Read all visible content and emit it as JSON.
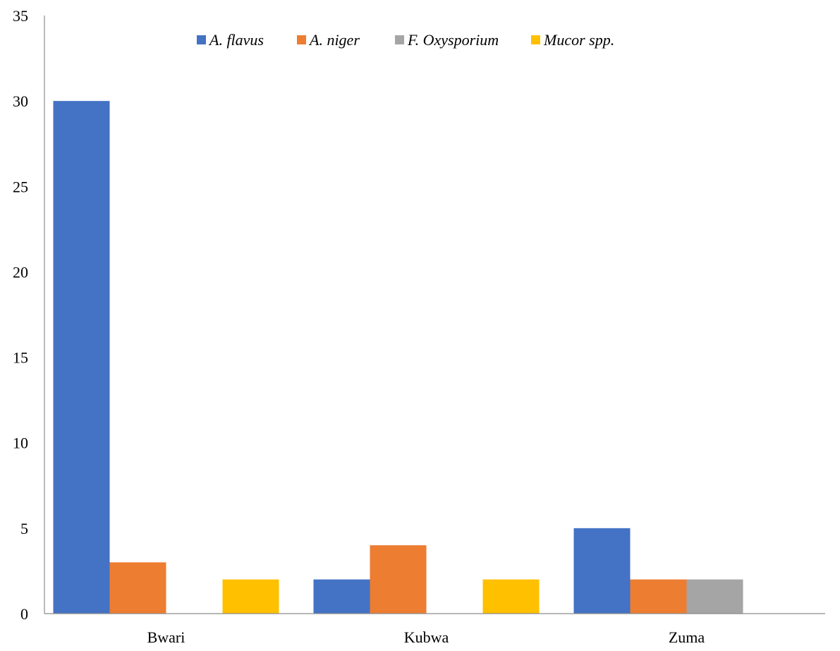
{
  "chart_data": {
    "type": "bar",
    "title": "",
    "xlabel": "",
    "ylabel": "",
    "categories": [
      "Bwari",
      "Kubwa",
      "Zuma"
    ],
    "series": [
      {
        "name": "A. flavus",
        "color": "#4472C4",
        "values": [
          30,
          2,
          5
        ]
      },
      {
        "name": "A. niger",
        "color": "#ED7D31",
        "values": [
          3,
          4,
          2
        ]
      },
      {
        "name": "F. Oxysporium",
        "color": "#A5A5A5",
        "values": [
          0,
          0,
          2
        ]
      },
      {
        "name": "Mucor spp.",
        "color": "#FFC000",
        "values": [
          2,
          2,
          0
        ]
      }
    ],
    "ylim": [
      0,
      35
    ],
    "yticks": [
      "0",
      "5",
      "10",
      "15",
      "20",
      "25",
      "30",
      "35"
    ],
    "grid": false,
    "legend_position": "top"
  }
}
